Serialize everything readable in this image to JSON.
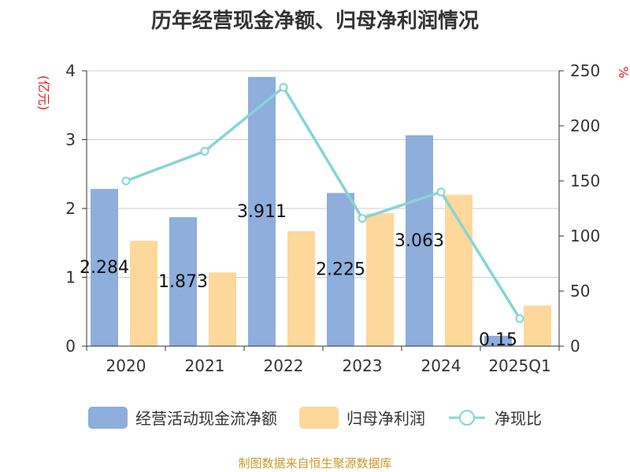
{
  "chart_data": {
    "type": "bar",
    "title": "历年经营现金净额、归母净利润情况",
    "categories": [
      "2020",
      "2021",
      "2022",
      "2023",
      "2024",
      "2025Q1"
    ],
    "y_left": {
      "label": "(亿元)",
      "range": [
        0,
        4
      ],
      "ticks": [
        0,
        1,
        2,
        3,
        4
      ]
    },
    "y_right": {
      "label": "%",
      "range": [
        0,
        250
      ],
      "ticks": [
        0,
        50,
        100,
        150,
        200,
        250
      ]
    },
    "series": [
      {
        "name": "经营活动现金流净额",
        "type": "bar",
        "axis": "left",
        "color": "#8eaedb",
        "values": [
          2.284,
          1.873,
          3.911,
          2.225,
          3.063,
          0.15
        ],
        "labels": [
          "2.284",
          "1.873",
          "3.911",
          "2.225",
          "3.063",
          "0.15"
        ]
      },
      {
        "name": "归母净利润",
        "type": "bar",
        "axis": "left",
        "color": "#fdd89a",
        "values": [
          1.53,
          1.07,
          1.67,
          1.93,
          2.2,
          0.59
        ]
      },
      {
        "name": "净现比",
        "type": "line",
        "axis": "right",
        "color": "#86d4d6",
        "values": [
          150,
          177,
          235,
          116,
          140,
          25
        ]
      }
    ],
    "grid": true,
    "legend_position": "bottom"
  },
  "footer": "制图数据来自恒生聚源数据库"
}
